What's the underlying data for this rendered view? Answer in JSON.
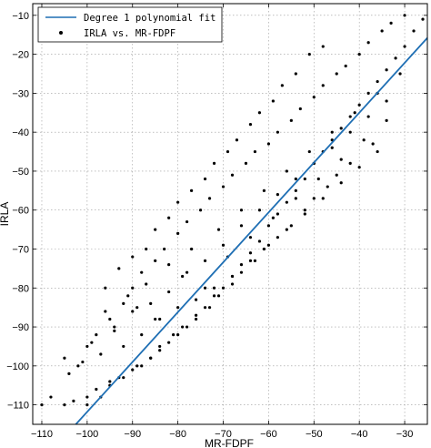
{
  "chart_data": {
    "type": "scatter",
    "xlabel": "MR-FDPF",
    "ylabel": "IRLA",
    "xlim": [
      -112,
      -25
    ],
    "ylim": [
      -115,
      -7
    ],
    "xticks": [
      -110,
      -100,
      -90,
      -80,
      -70,
      -60,
      -50,
      -40,
      -30
    ],
    "yticks": [
      -110,
      -100,
      -90,
      -80,
      -70,
      -60,
      -50,
      -40,
      -30,
      -20,
      -10
    ],
    "grid": true,
    "legend_position": "top-left",
    "series": [
      {
        "name": "Degree 1 polynomial fit",
        "kind": "line",
        "color": "#1f6fb4",
        "x": [
          -102.5,
          -25
        ],
        "y": [
          -115,
          -15.8
        ]
      },
      {
        "name": "IRLA vs. MR-FDPF",
        "kind": "scatter",
        "color": "#000000",
        "x": [
          -110,
          -108,
          -105,
          -103,
          -100,
          -98,
          -95,
          -93,
          -90,
          -88,
          -86,
          -84,
          -82,
          -80,
          -78,
          -76,
          -74,
          -72,
          -70,
          -68,
          -66,
          -64,
          -62,
          -60,
          -58,
          -56,
          -54,
          -52,
          -50,
          -48,
          -46,
          -44,
          -42,
          -40,
          -38,
          -36,
          -34,
          -32,
          -30,
          -28,
          -26,
          -100,
          -95,
          -92,
          -90,
          -88,
          -85,
          -83,
          -80,
          -78,
          -75,
          -73,
          -70,
          -68,
          -65,
          -63,
          -60,
          -58,
          -55,
          -53,
          -50,
          -48,
          -45,
          -43,
          -40,
          -38,
          -35,
          -33,
          -30,
          -105,
          -102,
          -98,
          -96,
          -94,
          -91,
          -89,
          -87,
          -85,
          -82,
          -79,
          -77,
          -74,
          -71,
          -69,
          -66,
          -64,
          -61,
          -59,
          -56,
          -54,
          -51,
          -49,
          -46,
          -44,
          -41,
          -39,
          -36,
          -34,
          -31,
          -100,
          -97,
          -95,
          -92,
          -89,
          -86,
          -84,
          -81,
          -79,
          -76,
          -73,
          -71,
          -68,
          -66,
          -63,
          -61,
          -58,
          -55,
          -52,
          -50,
          -47,
          -45,
          -42,
          -37,
          -96,
          -93,
          -90,
          -87,
          -85,
          -82,
          -80,
          -77,
          -74,
          -72,
          -69,
          -67,
          -64,
          -62,
          -59,
          -57,
          -54,
          -51,
          -48,
          -104,
          -101,
          -99,
          -97,
          -94,
          -92,
          -90,
          -88,
          -86,
          -84,
          -82,
          -80,
          -78,
          -76,
          -74,
          -72,
          -70,
          -68,
          -66,
          -64,
          -62,
          -60,
          -58,
          -56,
          -54,
          -52,
          -50,
          -48,
          -46,
          -44,
          -42,
          -40,
          -38,
          -36,
          -34
        ],
        "y": [
          -110,
          -108,
          -110,
          -109,
          -108,
          -106,
          -104,
          -103,
          -101,
          -100,
          -98,
          -96,
          -94,
          -92,
          -90,
          -88,
          -85,
          -82,
          -80,
          -77,
          -74,
          -71,
          -68,
          -64,
          -61,
          -58,
          -55,
          -52,
          -48,
          -45,
          -42,
          -39,
          -36,
          -33,
          -30,
          -27,
          -24,
          -21,
          -18,
          -14,
          -11,
          -95,
          -88,
          -84,
          -80,
          -76,
          -73,
          -70,
          -66,
          -63,
          -60,
          -57,
          -54,
          -51,
          -48,
          -45,
          -43,
          -40,
          -37,
          -34,
          -31,
          -28,
          -25,
          -23,
          -20,
          -17,
          -14,
          -12,
          -10,
          -98,
          -100,
          -92,
          -86,
          -90,
          -82,
          -85,
          -79,
          -88,
          -74,
          -77,
          -70,
          -80,
          -65,
          -72,
          -60,
          -67,
          -55,
          -62,
          -50,
          -57,
          -45,
          -52,
          -40,
          -47,
          -35,
          -42,
          -30,
          -37,
          -25,
          -110,
          -108,
          -105,
          -103,
          -100,
          -98,
          -95,
          -92,
          -90,
          -87,
          -85,
          -82,
          -79,
          -76,
          -73,
          -70,
          -67,
          -64,
          -60,
          -57,
          -54,
          -51,
          -48,
          -43,
          -80,
          -75,
          -72,
          -70,
          -65,
          -62,
          -58,
          -55,
          -52,
          -48,
          -45,
          -42,
          -38,
          -35,
          -32,
          -28,
          -25,
          -20,
          -18,
          -102,
          -99,
          -94,
          -97,
          -91,
          -95,
          -86,
          -92,
          -84,
          -88,
          -81,
          -85,
          -76,
          -83,
          -73,
          -80,
          -69,
          -77,
          -64,
          -73,
          -60,
          -69,
          -56,
          -65,
          -52,
          -61,
          -48,
          -57,
          -44,
          -53,
          -40,
          -49,
          -36,
          -45,
          -32
        ]
      }
    ]
  }
}
